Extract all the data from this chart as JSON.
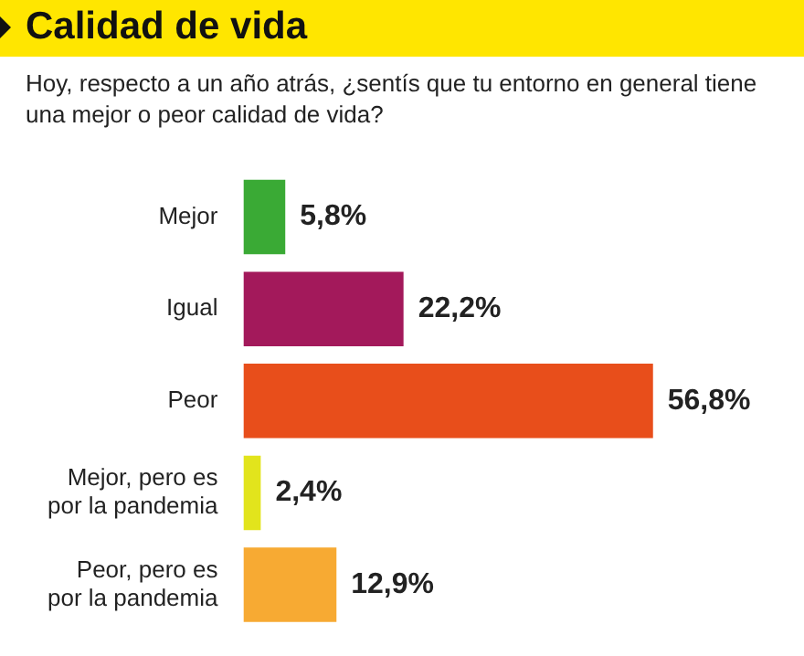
{
  "chart_data": {
    "type": "bar",
    "orientation": "horizontal",
    "title": "Calidad de vida",
    "subtitle": "Hoy, respecto a un año atrás, ¿sentís que tu entorno en general tiene una mejor o peor calidad de vida?",
    "categories": [
      "Mejor",
      "Igual",
      "Peor",
      "Mejor, pero es por la pandemia",
      "Peor, pero es por la pandemia"
    ],
    "values": [
      5.8,
      22.2,
      56.8,
      2.4,
      12.9
    ],
    "colors": [
      "#3aaa35",
      "#a3195b",
      "#e84e1b",
      "#e2e41c",
      "#f7aa33"
    ],
    "value_labels": [
      "5,8%",
      "22,2%",
      "56,8%",
      "2,4%",
      "12,9%"
    ],
    "legend": false
  }
}
